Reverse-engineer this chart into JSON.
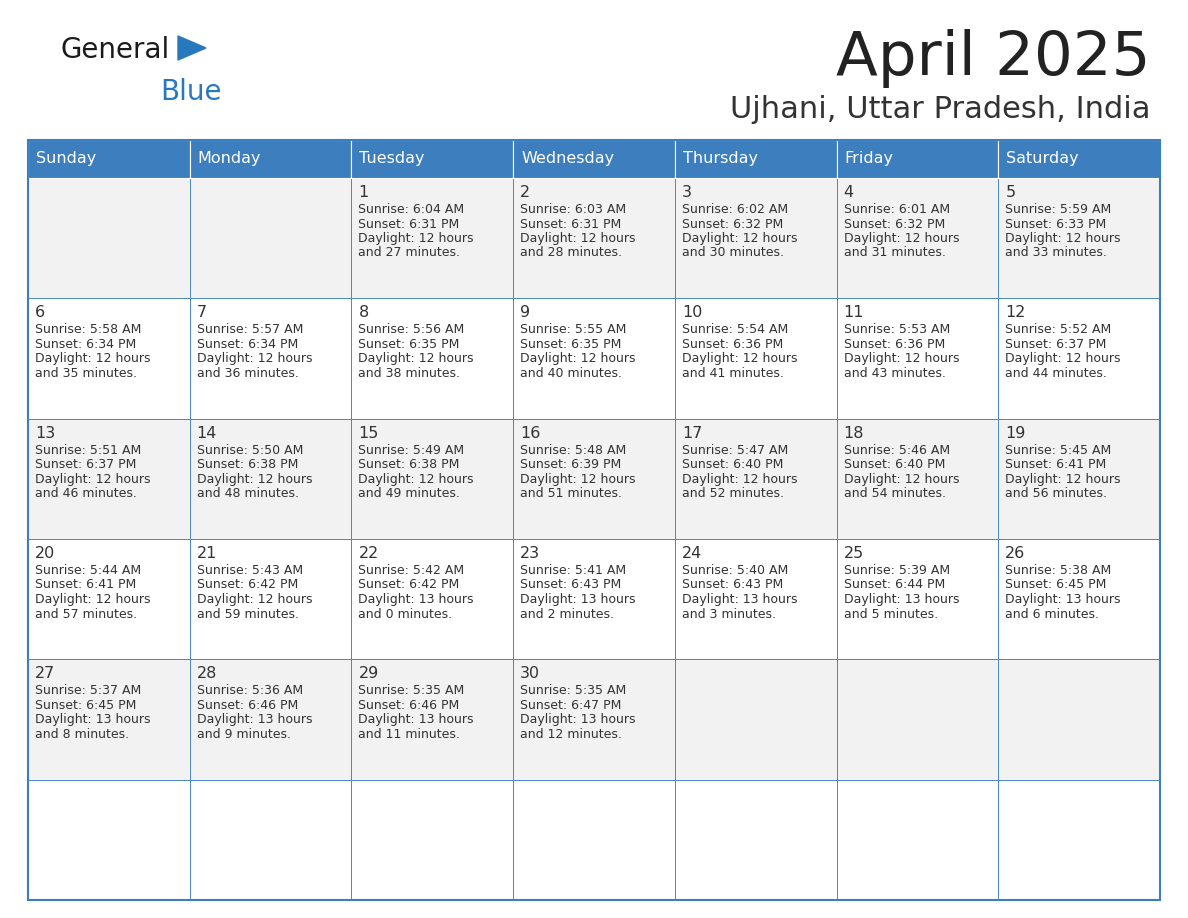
{
  "title": "April 2025",
  "subtitle": "Ujhani, Uttar Pradesh, India",
  "header_bg_color": "#3d7ebf",
  "header_text_color": "#ffffff",
  "weekdays": [
    "Sunday",
    "Monday",
    "Tuesday",
    "Wednesday",
    "Thursday",
    "Friday",
    "Saturday"
  ],
  "row_colors": [
    "#f2f2f2",
    "#ffffff"
  ],
  "cell_border_color": "#3d7ebf",
  "title_color": "#222222",
  "subtitle_color": "#333333",
  "logo_general_color": "#1a1a1a",
  "logo_blue_color": "#2878be",
  "logo_triangle_color": "#2878be",
  "days": [
    {
      "date": "",
      "sunrise": "",
      "sunset": "",
      "daylight": ""
    },
    {
      "date": "",
      "sunrise": "",
      "sunset": "",
      "daylight": ""
    },
    {
      "date": "1",
      "sunrise": "Sunrise: 6:04 AM",
      "sunset": "Sunset: 6:31 PM",
      "daylight": "Daylight: 12 hours\nand 27 minutes."
    },
    {
      "date": "2",
      "sunrise": "Sunrise: 6:03 AM",
      "sunset": "Sunset: 6:31 PM",
      "daylight": "Daylight: 12 hours\nand 28 minutes."
    },
    {
      "date": "3",
      "sunrise": "Sunrise: 6:02 AM",
      "sunset": "Sunset: 6:32 PM",
      "daylight": "Daylight: 12 hours\nand 30 minutes."
    },
    {
      "date": "4",
      "sunrise": "Sunrise: 6:01 AM",
      "sunset": "Sunset: 6:32 PM",
      "daylight": "Daylight: 12 hours\nand 31 minutes."
    },
    {
      "date": "5",
      "sunrise": "Sunrise: 5:59 AM",
      "sunset": "Sunset: 6:33 PM",
      "daylight": "Daylight: 12 hours\nand 33 minutes."
    },
    {
      "date": "6",
      "sunrise": "Sunrise: 5:58 AM",
      "sunset": "Sunset: 6:34 PM",
      "daylight": "Daylight: 12 hours\nand 35 minutes."
    },
    {
      "date": "7",
      "sunrise": "Sunrise: 5:57 AM",
      "sunset": "Sunset: 6:34 PM",
      "daylight": "Daylight: 12 hours\nand 36 minutes."
    },
    {
      "date": "8",
      "sunrise": "Sunrise: 5:56 AM",
      "sunset": "Sunset: 6:35 PM",
      "daylight": "Daylight: 12 hours\nand 38 minutes."
    },
    {
      "date": "9",
      "sunrise": "Sunrise: 5:55 AM",
      "sunset": "Sunset: 6:35 PM",
      "daylight": "Daylight: 12 hours\nand 40 minutes."
    },
    {
      "date": "10",
      "sunrise": "Sunrise: 5:54 AM",
      "sunset": "Sunset: 6:36 PM",
      "daylight": "Daylight: 12 hours\nand 41 minutes."
    },
    {
      "date": "11",
      "sunrise": "Sunrise: 5:53 AM",
      "sunset": "Sunset: 6:36 PM",
      "daylight": "Daylight: 12 hours\nand 43 minutes."
    },
    {
      "date": "12",
      "sunrise": "Sunrise: 5:52 AM",
      "sunset": "Sunset: 6:37 PM",
      "daylight": "Daylight: 12 hours\nand 44 minutes."
    },
    {
      "date": "13",
      "sunrise": "Sunrise: 5:51 AM",
      "sunset": "Sunset: 6:37 PM",
      "daylight": "Daylight: 12 hours\nand 46 minutes."
    },
    {
      "date": "14",
      "sunrise": "Sunrise: 5:50 AM",
      "sunset": "Sunset: 6:38 PM",
      "daylight": "Daylight: 12 hours\nand 48 minutes."
    },
    {
      "date": "15",
      "sunrise": "Sunrise: 5:49 AM",
      "sunset": "Sunset: 6:38 PM",
      "daylight": "Daylight: 12 hours\nand 49 minutes."
    },
    {
      "date": "16",
      "sunrise": "Sunrise: 5:48 AM",
      "sunset": "Sunset: 6:39 PM",
      "daylight": "Daylight: 12 hours\nand 51 minutes."
    },
    {
      "date": "17",
      "sunrise": "Sunrise: 5:47 AM",
      "sunset": "Sunset: 6:40 PM",
      "daylight": "Daylight: 12 hours\nand 52 minutes."
    },
    {
      "date": "18",
      "sunrise": "Sunrise: 5:46 AM",
      "sunset": "Sunset: 6:40 PM",
      "daylight": "Daylight: 12 hours\nand 54 minutes."
    },
    {
      "date": "19",
      "sunrise": "Sunrise: 5:45 AM",
      "sunset": "Sunset: 6:41 PM",
      "daylight": "Daylight: 12 hours\nand 56 minutes."
    },
    {
      "date": "20",
      "sunrise": "Sunrise: 5:44 AM",
      "sunset": "Sunset: 6:41 PM",
      "daylight": "Daylight: 12 hours\nand 57 minutes."
    },
    {
      "date": "21",
      "sunrise": "Sunrise: 5:43 AM",
      "sunset": "Sunset: 6:42 PM",
      "daylight": "Daylight: 12 hours\nand 59 minutes."
    },
    {
      "date": "22",
      "sunrise": "Sunrise: 5:42 AM",
      "sunset": "Sunset: 6:42 PM",
      "daylight": "Daylight: 13 hours\nand 0 minutes."
    },
    {
      "date": "23",
      "sunrise": "Sunrise: 5:41 AM",
      "sunset": "Sunset: 6:43 PM",
      "daylight": "Daylight: 13 hours\nand 2 minutes."
    },
    {
      "date": "24",
      "sunrise": "Sunrise: 5:40 AM",
      "sunset": "Sunset: 6:43 PM",
      "daylight": "Daylight: 13 hours\nand 3 minutes."
    },
    {
      "date": "25",
      "sunrise": "Sunrise: 5:39 AM",
      "sunset": "Sunset: 6:44 PM",
      "daylight": "Daylight: 13 hours\nand 5 minutes."
    },
    {
      "date": "26",
      "sunrise": "Sunrise: 5:38 AM",
      "sunset": "Sunset: 6:45 PM",
      "daylight": "Daylight: 13 hours\nand 6 minutes."
    },
    {
      "date": "27",
      "sunrise": "Sunrise: 5:37 AM",
      "sunset": "Sunset: 6:45 PM",
      "daylight": "Daylight: 13 hours\nand 8 minutes."
    },
    {
      "date": "28",
      "sunrise": "Sunrise: 5:36 AM",
      "sunset": "Sunset: 6:46 PM",
      "daylight": "Daylight: 13 hours\nand 9 minutes."
    },
    {
      "date": "29",
      "sunrise": "Sunrise: 5:35 AM",
      "sunset": "Sunset: 6:46 PM",
      "daylight": "Daylight: 13 hours\nand 11 minutes."
    },
    {
      "date": "30",
      "sunrise": "Sunrise: 5:35 AM",
      "sunset": "Sunset: 6:47 PM",
      "daylight": "Daylight: 13 hours\nand 12 minutes."
    },
    {
      "date": "",
      "sunrise": "",
      "sunset": "",
      "daylight": ""
    },
    {
      "date": "",
      "sunrise": "",
      "sunset": "",
      "daylight": ""
    },
    {
      "date": "",
      "sunrise": "",
      "sunset": "",
      "daylight": ""
    },
    {
      "date": "",
      "sunrise": "",
      "sunset": "",
      "daylight": ""
    }
  ]
}
